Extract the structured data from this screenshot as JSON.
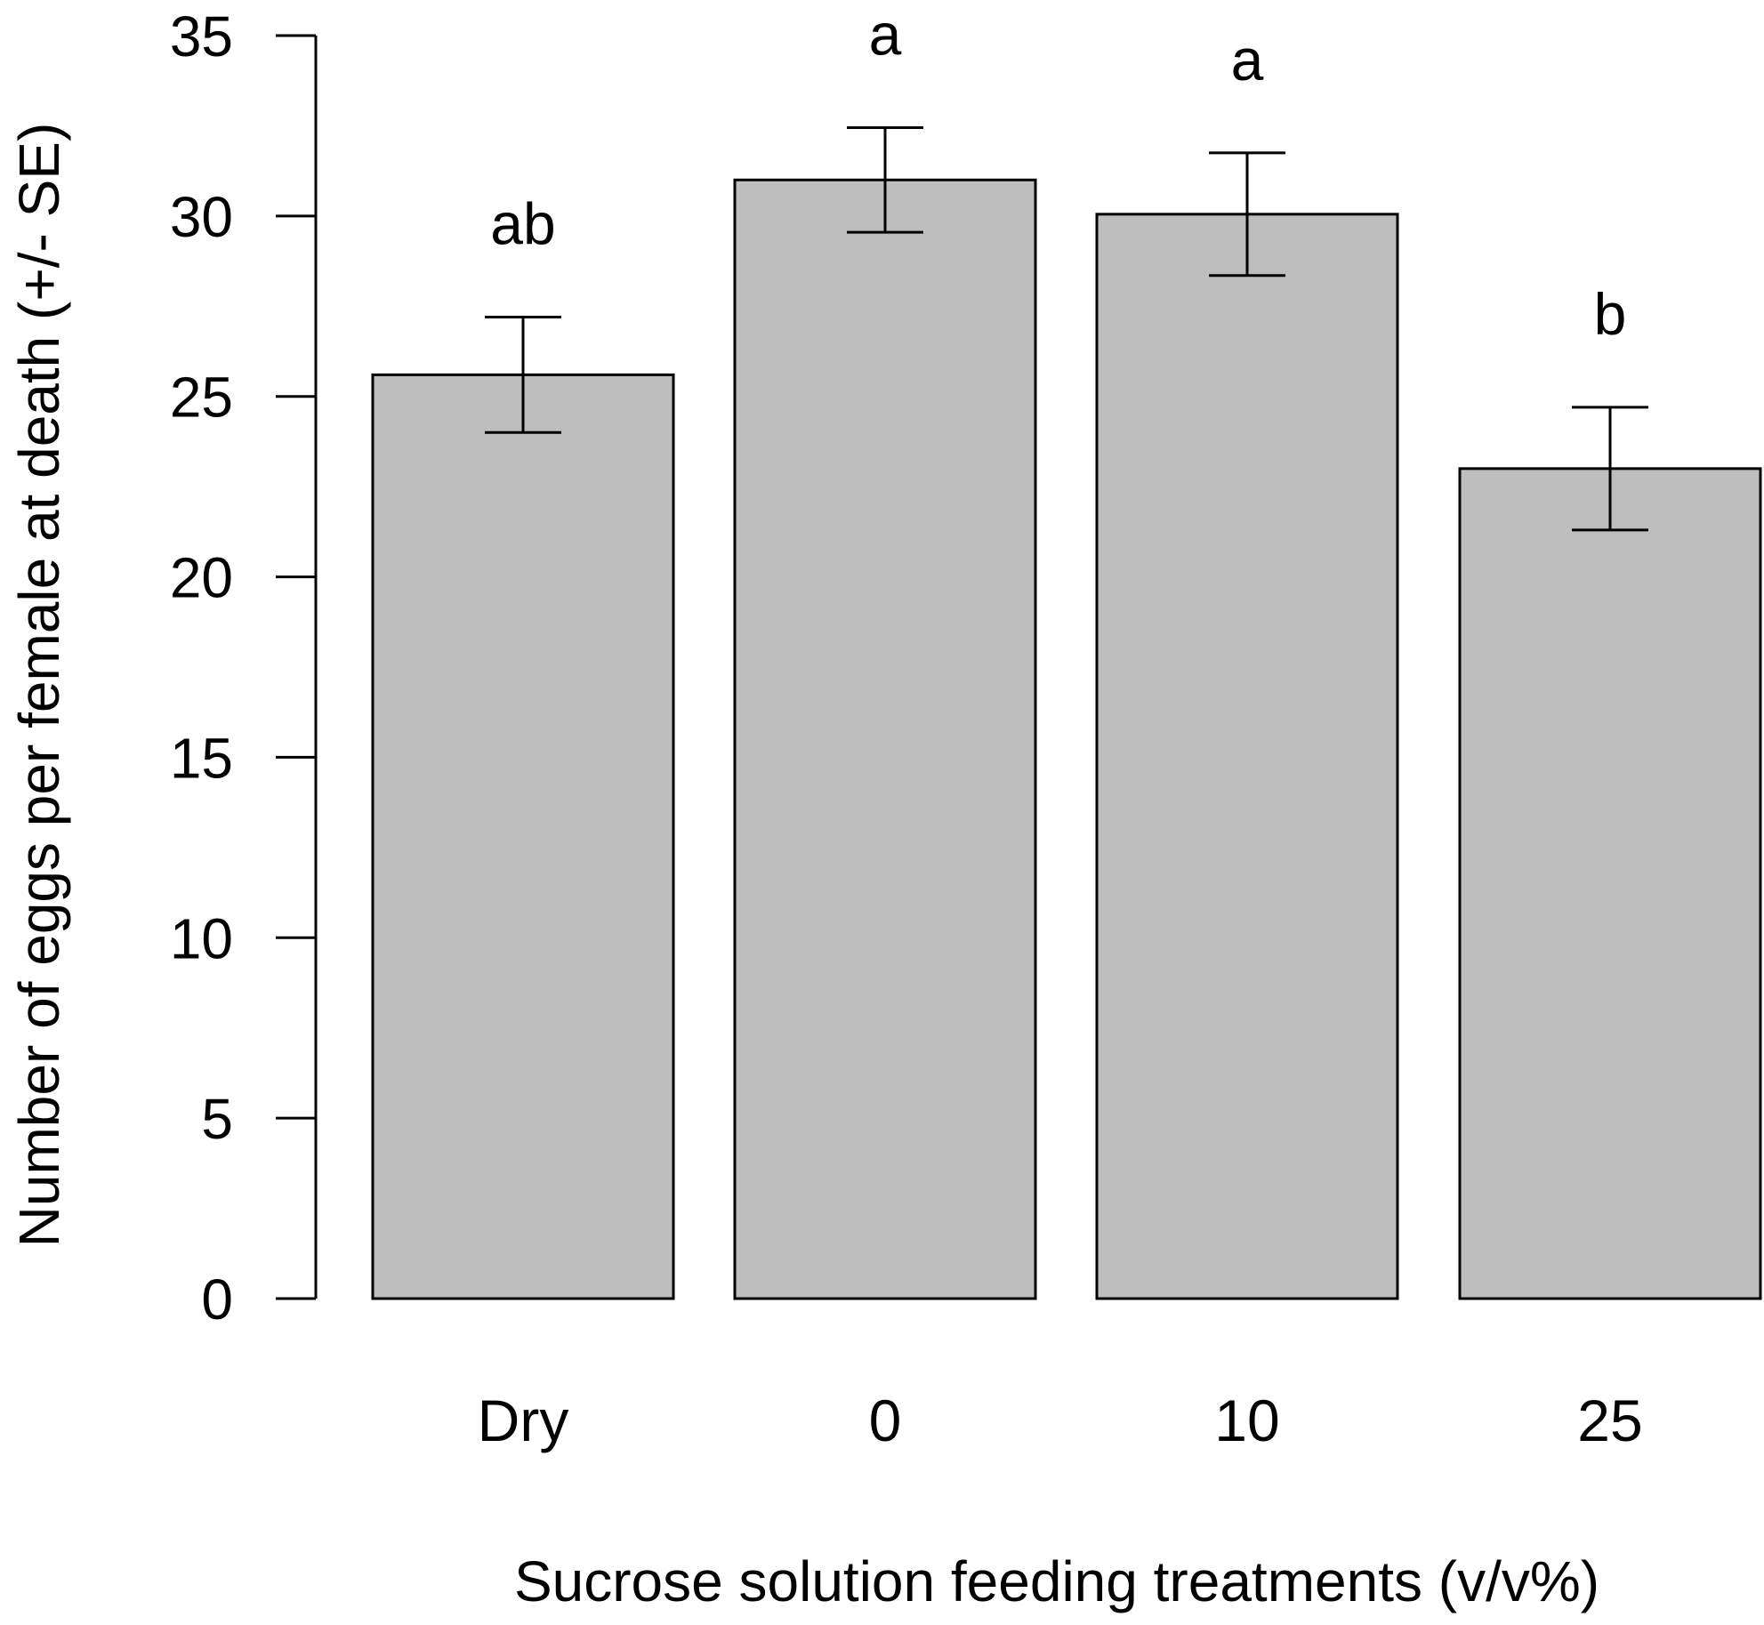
{
  "chart_data": {
    "type": "bar",
    "title": "",
    "xlabel": "Sucrose solution feeding treatments (v/v%)",
    "ylabel": "Number of eggs per female at death (+/- SE)",
    "ylim": [
      0,
      35
    ],
    "yticks": [
      0,
      5,
      10,
      15,
      20,
      25,
      30,
      35
    ],
    "grid": false,
    "categories": [
      "Dry",
      "0",
      "10",
      "25"
    ],
    "values": [
      25.6,
      31.0,
      30.05,
      23.0
    ],
    "se": [
      1.6,
      1.45,
      1.7,
      1.7
    ],
    "significance_letters": [
      "ab",
      "a",
      "a",
      "b"
    ],
    "colors": {
      "bar_fill": "#bebebe",
      "bar_stroke": "#000000",
      "axis": "#000000"
    }
  }
}
